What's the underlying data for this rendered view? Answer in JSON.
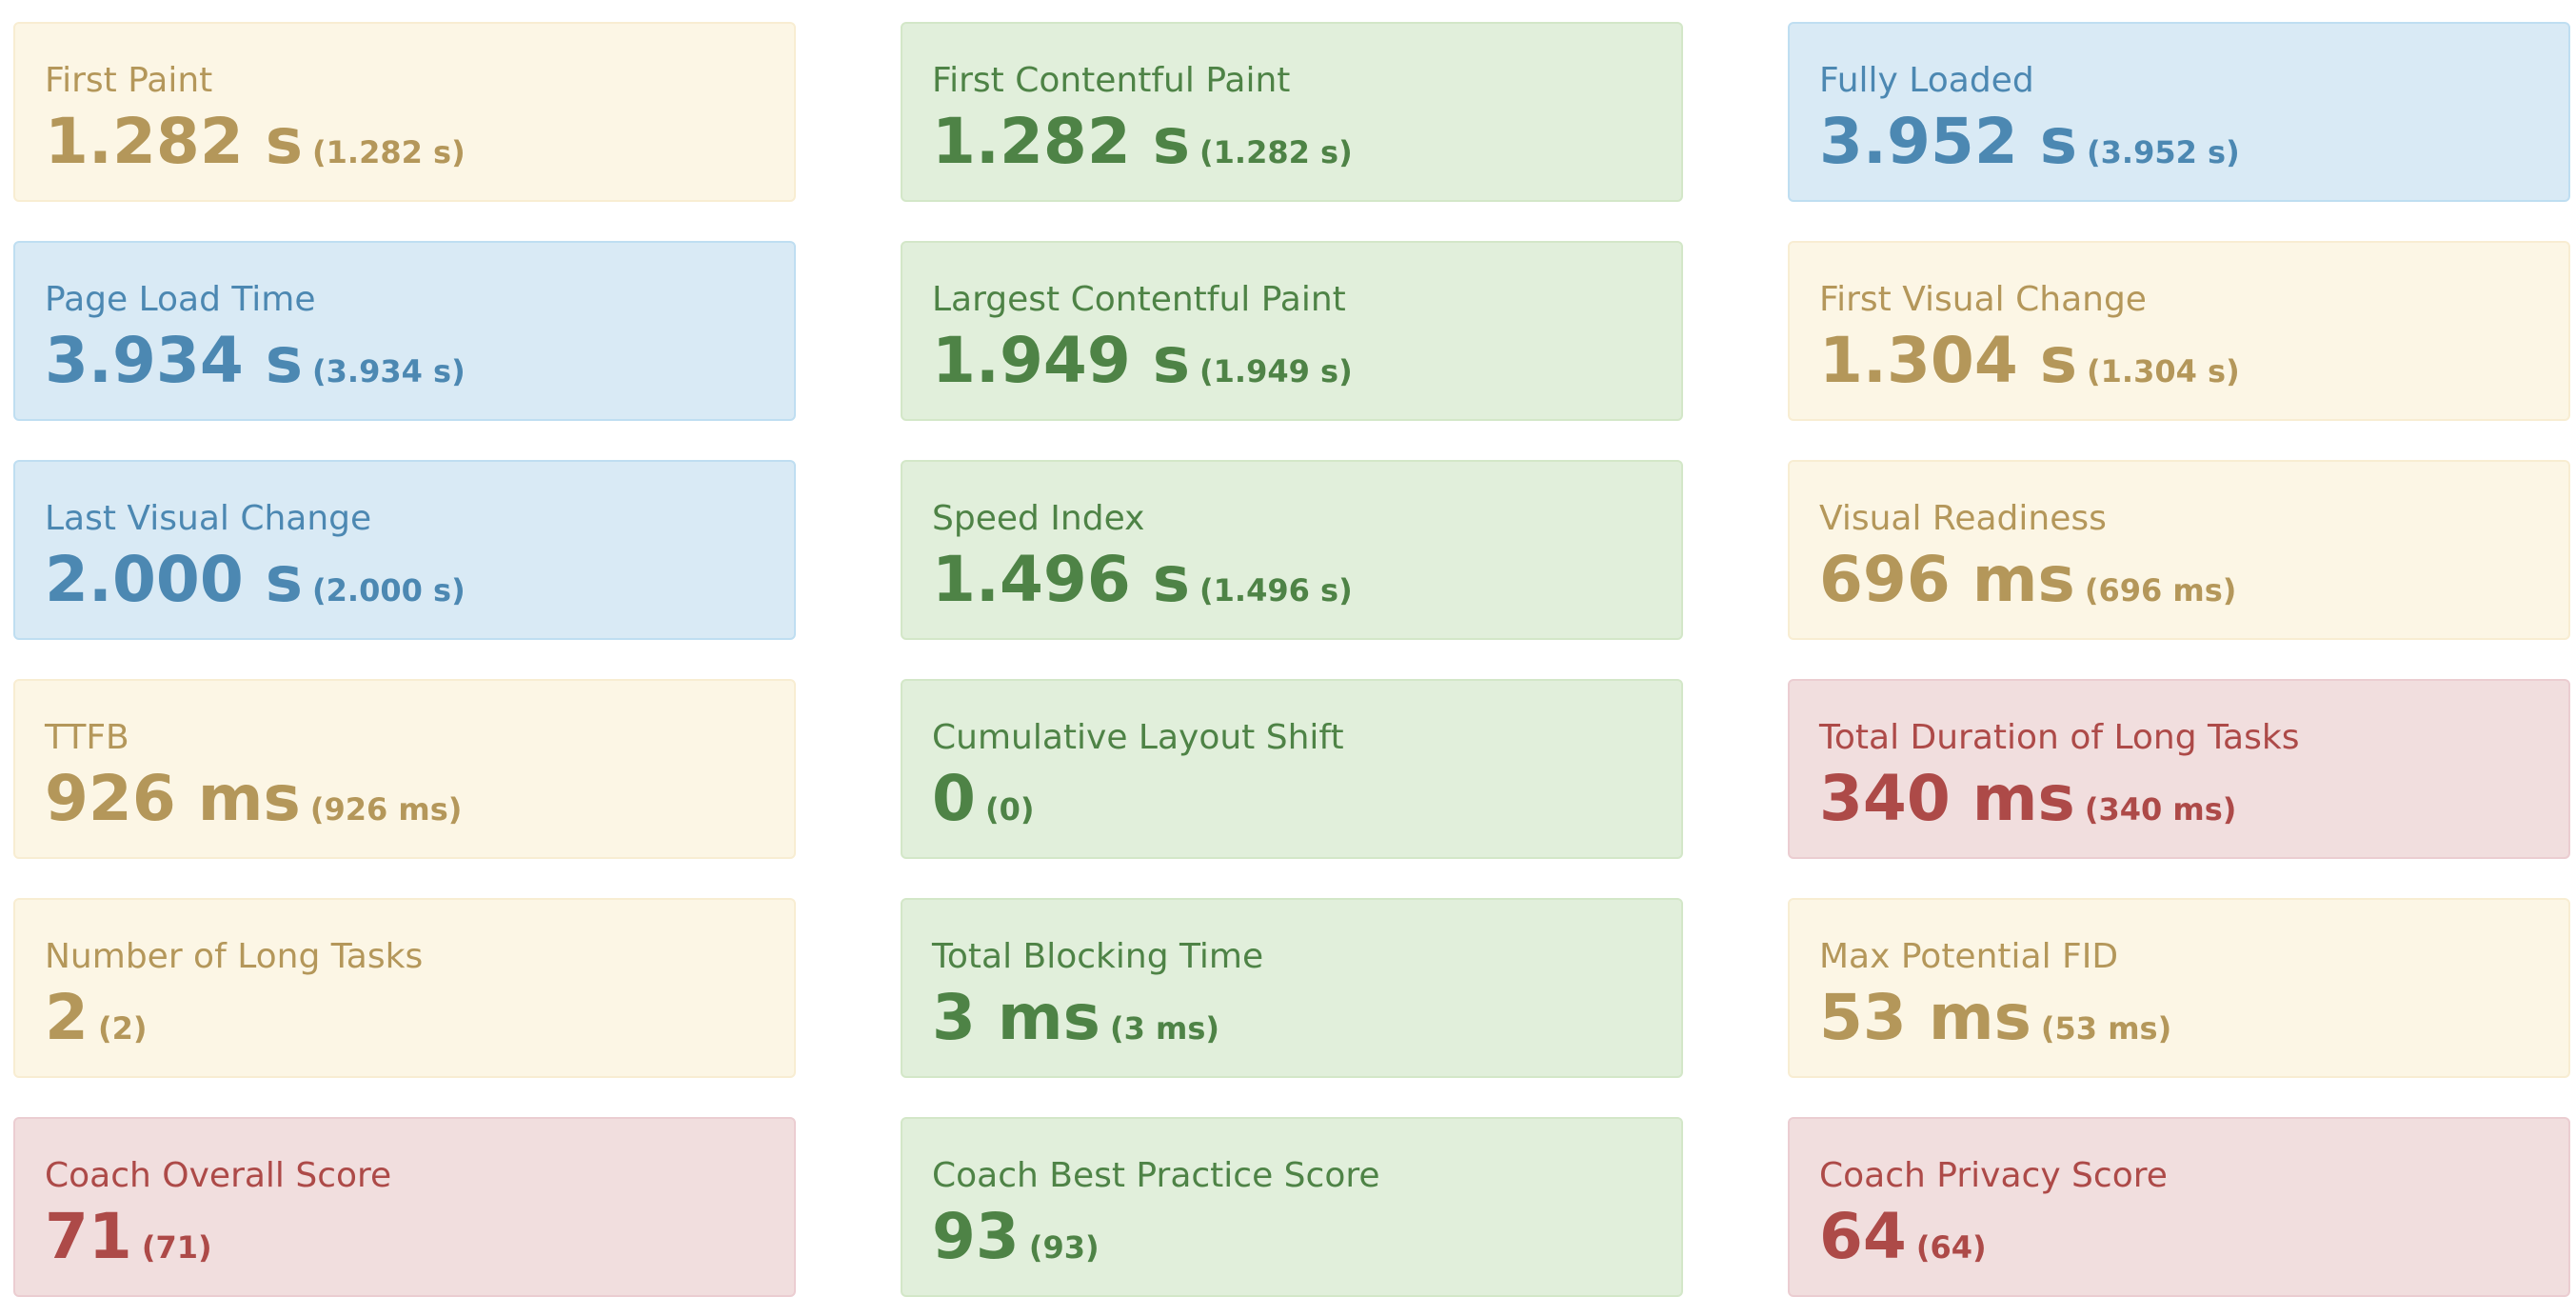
{
  "metrics": [
    {
      "label": "First Paint",
      "value": "1.282 s",
      "sub": "(1.282 s)",
      "status": "warning"
    },
    {
      "label": "First Contentful Paint",
      "value": "1.282 s",
      "sub": "(1.282 s)",
      "status": "success"
    },
    {
      "label": "Fully Loaded",
      "value": "3.952 s",
      "sub": "(3.952 s)",
      "status": "info"
    },
    {
      "label": "Page Load Time",
      "value": "3.934 s",
      "sub": "(3.934 s)",
      "status": "info"
    },
    {
      "label": "Largest Contentful Paint",
      "value": "1.949 s",
      "sub": "(1.949 s)",
      "status": "success"
    },
    {
      "label": "First Visual Change",
      "value": "1.304 s",
      "sub": "(1.304 s)",
      "status": "warning"
    },
    {
      "label": "Last Visual Change",
      "value": "2.000 s",
      "sub": "(2.000 s)",
      "status": "info"
    },
    {
      "label": "Speed Index",
      "value": "1.496 s",
      "sub": "(1.496 s)",
      "status": "success"
    },
    {
      "label": "Visual Readiness",
      "value": "696 ms",
      "sub": "(696 ms)",
      "status": "warning"
    },
    {
      "label": "TTFB",
      "value": "926 ms",
      "sub": "(926 ms)",
      "status": "warning"
    },
    {
      "label": "Cumulative Layout Shift",
      "value": "0",
      "sub": "(0)",
      "status": "success"
    },
    {
      "label": "Total Duration of Long Tasks",
      "value": "340 ms",
      "sub": "(340 ms)",
      "status": "danger"
    },
    {
      "label": "Number of Long Tasks",
      "value": "2",
      "sub": "(2)",
      "status": "warning"
    },
    {
      "label": "Total Blocking Time",
      "value": "3 ms",
      "sub": "(3 ms)",
      "status": "success"
    },
    {
      "label": "Max Potential FID",
      "value": "53 ms",
      "sub": "(53 ms)",
      "status": "warning"
    },
    {
      "label": "Coach Overall Score",
      "value": "71",
      "sub": "(71)",
      "status": "danger"
    },
    {
      "label": "Coach Best Practice Score",
      "value": "93",
      "sub": "(93)",
      "status": "success"
    },
    {
      "label": "Coach Privacy Score",
      "value": "64",
      "sub": "(64)",
      "status": "danger"
    }
  ],
  "colors": {
    "warning_bg": "#fcf6e5",
    "warning_text": "#b4975a",
    "success_bg": "#e1efdb",
    "success_text": "#4e8346",
    "info_bg": "#d9eaf5",
    "info_text": "#4c88b2",
    "danger_bg": "#f1dede",
    "danger_text": "#ad4a48"
  }
}
